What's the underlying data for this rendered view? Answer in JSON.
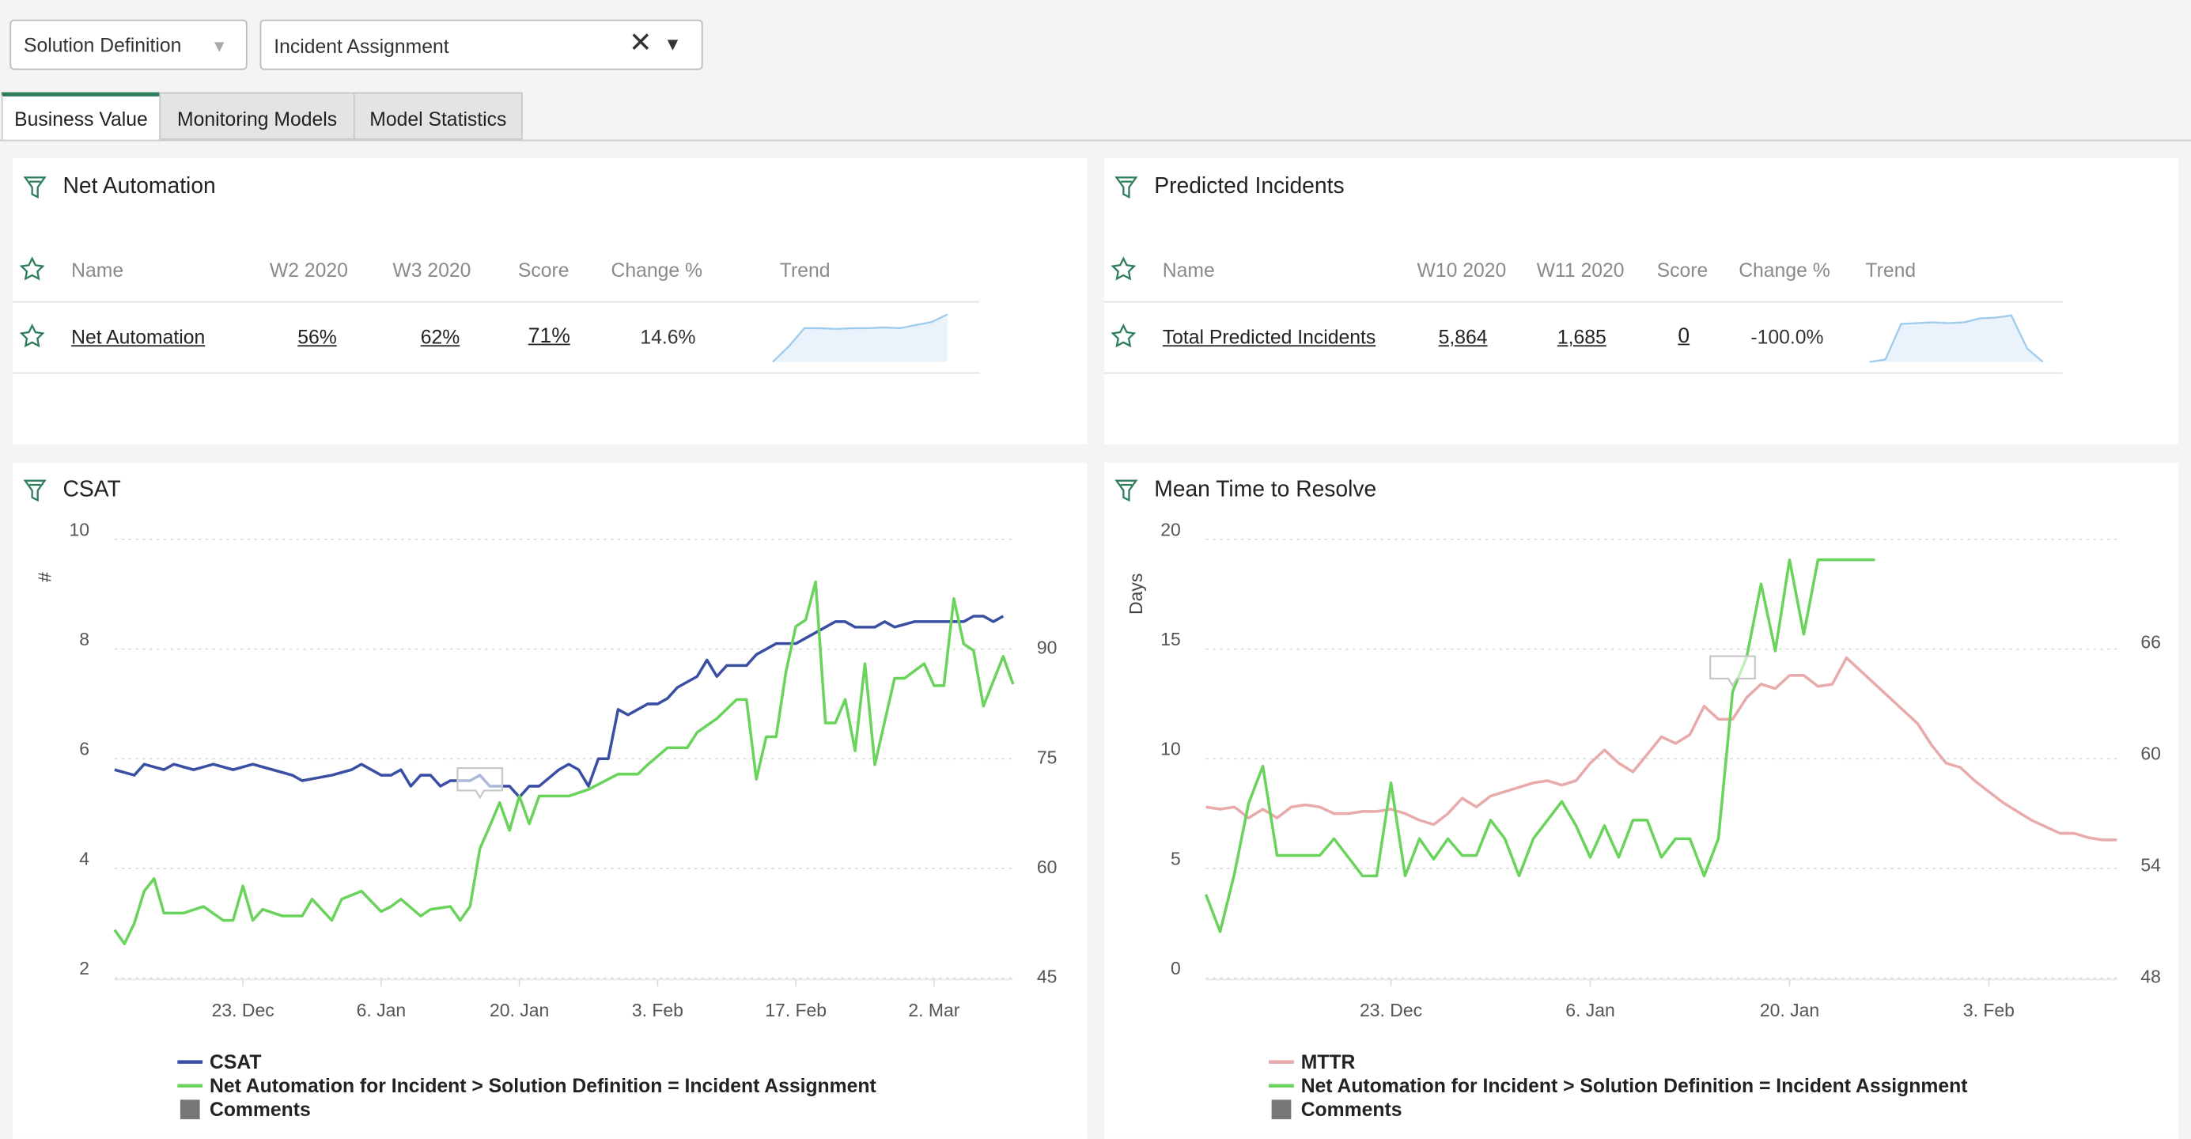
{
  "filters": [
    {
      "label": "Solution Definition"
    },
    {
      "label": "Incident Assignment"
    }
  ],
  "tabs": [
    "Business Value",
    "Monitoring Models",
    "Model Statistics"
  ],
  "widgets": [
    {
      "title": "Net Automation",
      "columns": [
        "Name",
        "W2 2020",
        "W3 2020",
        "Score",
        "Change %",
        "Trend"
      ],
      "rows": [
        {
          "cells": [
            "Net Automation",
            "56%",
            "62%",
            "71%",
            "14.6%"
          ],
          "trend": [
            40,
            50,
            62,
            62,
            61.5,
            62,
            62,
            62.5,
            62,
            64,
            66,
            71
          ],
          "trend_ylim": [
            40,
            71
          ]
        }
      ]
    },
    {
      "title": "Predicted Incidents",
      "columns": [
        "Name",
        "W10 2020",
        "W11 2020",
        "Score",
        "Change %",
        "Trend"
      ],
      "rows": [
        {
          "cells": [
            "Total Predicted Incidents",
            "5,864",
            "1,685",
            "0",
            "-100.0%"
          ],
          "trend": [
            0,
            300,
            4800,
            4900,
            5000,
            4900,
            5000,
            5500,
            5600,
            5864,
            1685,
            0
          ],
          "trend_ylim": [
            0,
            6000
          ]
        }
      ]
    }
  ],
  "chart_data": [
    {
      "type": "line",
      "title": "CSAT",
      "ylabel": "#",
      "grid": true,
      "legend": "bottom",
      "xlim": [
        0,
        91
      ],
      "xticks": [
        {
          "value": 13,
          "label": "23. Dec"
        },
        {
          "value": 27,
          "label": "6. Jan"
        },
        {
          "value": 41,
          "label": "20. Jan"
        },
        {
          "value": 55,
          "label": "3. Feb"
        },
        {
          "value": 69,
          "label": "17. Feb"
        },
        {
          "value": 83,
          "label": "2. Mar"
        }
      ],
      "ylim": [
        2,
        10
      ],
      "yticks": [
        2,
        4,
        6,
        8,
        10
      ],
      "y2lim": [
        45,
        105
      ],
      "y2ticks": [
        45,
        60,
        75,
        90
      ],
      "series": [
        {
          "name": "CSAT",
          "color": "#3a4fa3",
          "x": [
            0,
            2,
            3,
            5,
            6,
            8,
            10,
            12,
            14,
            16,
            18,
            19,
            22,
            24,
            25,
            27,
            28,
            29,
            30,
            31,
            32,
            33,
            34,
            36,
            37,
            38,
            40,
            41,
            42,
            43,
            45,
            46,
            47,
            48,
            49,
            50,
            51,
            52,
            54,
            55,
            56,
            57,
            59,
            60,
            61,
            62,
            64,
            65,
            67,
            69,
            71,
            73,
            74,
            75,
            77,
            78,
            79,
            81,
            86,
            87,
            88,
            89,
            90
          ],
          "values": [
            5.8,
            5.7,
            5.9,
            5.8,
            5.9,
            5.8,
            5.9,
            5.8,
            5.9,
            5.8,
            5.7,
            5.6,
            5.7,
            5.8,
            5.9,
            5.7,
            5.7,
            5.8,
            5.5,
            5.7,
            5.7,
            5.5,
            5.6,
            5.6,
            5.7,
            5.5,
            5.5,
            5.3,
            5.5,
            5.5,
            5.8,
            5.9,
            5.8,
            5.5,
            6.0,
            6.0,
            6.9,
            6.8,
            7.0,
            7.0,
            7.1,
            7.3,
            7.5,
            7.8,
            7.5,
            7.7,
            7.7,
            7.9,
            8.1,
            8.1,
            8.3,
            8.5,
            8.5,
            8.4,
            8.4,
            8.5,
            8.4,
            8.5,
            8.5,
            8.6,
            8.6,
            8.5,
            8.6
          ]
        },
        {
          "name": "Net Automation for Incident > Solution Definition = Incident Assignment",
          "color": "#6ad35c",
          "axis": "y2",
          "x": [
            0,
            1,
            2,
            3,
            4,
            5,
            7,
            9,
            11,
            12,
            13,
            14,
            15,
            17,
            19,
            20,
            22,
            23,
            25,
            27,
            28,
            29,
            31,
            32,
            34,
            35,
            36,
            37,
            38,
            39,
            40,
            41,
            42,
            43,
            46,
            48,
            51,
            53,
            54,
            56,
            58,
            59,
            61,
            63,
            64,
            65,
            66,
            67,
            68,
            69,
            70,
            71,
            72,
            73,
            74,
            75,
            76,
            77,
            79,
            80,
            82,
            83,
            84,
            85,
            86,
            87,
            88,
            90,
            91
          ],
          "values": [
            51.6,
            49.7,
            52.5,
            56.9,
            58.6,
            53.9,
            53.9,
            54.8,
            52.9,
            52.9,
            57.6,
            52.9,
            54.4,
            53.5,
            53.5,
            55.8,
            52.9,
            55.8,
            56.9,
            54.1,
            54.8,
            55.8,
            53.5,
            54.4,
            54.8,
            52.9,
            54.8,
            62.7,
            65.8,
            69.0,
            65.2,
            69.9,
            66.1,
            69.9,
            69.9,
            70.8,
            72.9,
            72.9,
            74.2,
            76.5,
            76.5,
            78.6,
            80.5,
            83.1,
            83.1,
            72.2,
            78.0,
            78.0,
            86.9,
            93.1,
            94.0,
            99.2,
            79.9,
            79.9,
            83.1,
            76.1,
            88.0,
            74.2,
            86.0,
            86.0,
            88.0,
            85.0,
            85.0,
            96.9,
            90.7,
            89.8,
            82.2,
            89.0,
            85.2
          ]
        },
        {
          "name": "Comments",
          "color": "#777777",
          "marker": "comment",
          "x": [
            37
          ],
          "values": [
            5.6
          ]
        }
      ]
    },
    {
      "type": "line",
      "title": "Mean Time to Resolve",
      "ylabel": "Days",
      "grid": true,
      "legend": "bottom",
      "xlim": [
        0,
        64
      ],
      "xticks": [
        {
          "value": 13,
          "label": "23. Dec"
        },
        {
          "value": 27,
          "label": "6. Jan"
        },
        {
          "value": 41,
          "label": "20. Jan"
        },
        {
          "value": 55,
          "label": "3. Feb"
        }
      ],
      "ylim": [
        0,
        20
      ],
      "yticks": [
        0,
        5,
        10,
        15,
        20
      ],
      "y2lim": [
        48,
        71.6
      ],
      "y2ticks": [
        48,
        54,
        60,
        66
      ],
      "series": [
        {
          "name": "MTTR",
          "color": "#e8aaaa",
          "x": [
            0,
            1,
            2,
            3,
            4,
            5,
            6,
            7,
            8,
            9,
            10,
            11,
            12,
            13,
            14,
            15,
            16,
            17,
            18,
            19,
            20,
            21,
            22,
            23,
            24,
            25,
            26,
            27,
            28,
            29,
            30,
            31,
            32,
            33,
            34,
            35,
            36,
            37,
            38,
            39,
            40,
            41,
            42,
            43,
            44,
            45,
            46,
            47,
            48,
            49,
            50,
            51,
            52,
            53,
            54,
            55,
            56,
            57,
            58,
            59,
            60,
            61,
            62,
            63,
            64
          ],
          "values": [
            7.8,
            7.7,
            7.8,
            7.3,
            7.7,
            7.3,
            7.8,
            7.9,
            7.8,
            7.5,
            7.5,
            7.6,
            7.6,
            7.7,
            7.5,
            7.2,
            7.0,
            7.5,
            8.2,
            7.8,
            8.3,
            8.5,
            8.7,
            8.9,
            9.0,
            8.8,
            9.0,
            9.8,
            10.4,
            9.8,
            9.4,
            10.2,
            11.0,
            10.7,
            11.1,
            12.4,
            11.8,
            11.8,
            12.8,
            13.4,
            13.2,
            13.8,
            13.8,
            13.3,
            13.4,
            14.6,
            14.0,
            13.4,
            12.8,
            12.2,
            11.6,
            10.6,
            9.8,
            9.6,
            9.0,
            8.5,
            8.0,
            7.6,
            7.2,
            6.9,
            6.6,
            6.6,
            6.4,
            6.3,
            6.3
          ]
        },
        {
          "name": "Net Automation for Incident > Solution Definition = Incident Assignment",
          "color": "#6ad35c",
          "axis": "y2",
          "x": [
            0,
            1,
            2,
            3,
            4,
            5,
            8,
            9,
            11,
            12,
            13,
            14,
            15,
            16,
            17,
            18,
            19,
            20,
            21,
            22,
            23,
            25,
            26,
            27,
            28,
            29,
            30,
            31,
            32,
            33,
            34,
            35,
            36,
            37,
            38,
            39,
            40,
            41,
            42,
            43,
            47
          ],
          "values": [
            52.5,
            50.5,
            53.6,
            57.4,
            59.4,
            54.6,
            54.6,
            55.5,
            53.5,
            53.5,
            58.5,
            53.5,
            55.5,
            54.4,
            55.5,
            54.6,
            54.6,
            56.5,
            55.5,
            53.5,
            55.5,
            57.5,
            56.2,
            54.5,
            56.2,
            54.5,
            56.5,
            56.5,
            54.5,
            55.5,
            55.5,
            53.5,
            55.5,
            63.4,
            65.3,
            69.2,
            65.6,
            70.5,
            66.5,
            70.5,
            70.5
          ]
        },
        {
          "name": "Comments",
          "color": "#777777",
          "marker": "comment",
          "x": [
            37
          ],
          "values": [
            14.1
          ]
        }
      ]
    }
  ]
}
